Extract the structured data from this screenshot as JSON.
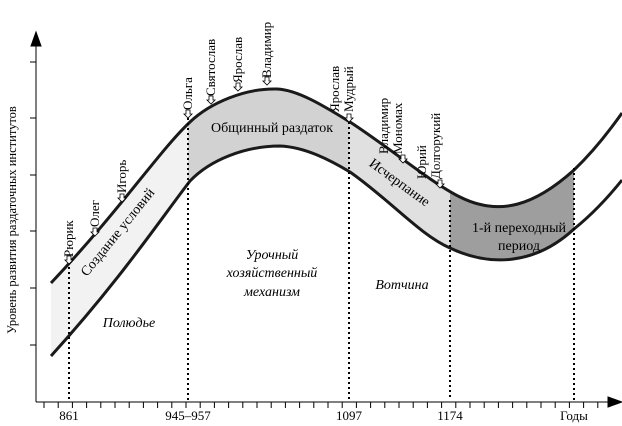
{
  "y_axis_label": "Уровень развития раздаточных институтов",
  "x_ticks": [
    "861",
    "945–957",
    "1097",
    "1174",
    "Годы"
  ],
  "stages": {
    "creation": "Создание условий",
    "common": "Общинный раздаток",
    "exhaustion": "Исчерпание",
    "transition_line1": "1-й переходный",
    "transition_line2": "период"
  },
  "lower_regions": {
    "polyudye": "Полюдье",
    "urochny_1": "Урочный",
    "urochny_2": "хозяйственный",
    "urochny_3": "механизм",
    "votchina": "Вотчина"
  },
  "rulers": [
    {
      "lines": [
        "Рюрик"
      ]
    },
    {
      "lines": [
        "Олег"
      ]
    },
    {
      "lines": [
        "Игорь"
      ]
    },
    {
      "lines": [
        "Ольга"
      ]
    },
    {
      "lines": [
        "Святослав"
      ]
    },
    {
      "lines": [
        "Ярослав"
      ]
    },
    {
      "lines": [
        "Владимир"
      ]
    },
    {
      "lines": [
        "Ярослав",
        "Мудрый"
      ]
    },
    {
      "lines": [
        "Владимир",
        "Мономах"
      ]
    },
    {
      "lines": [
        "Юрий",
        "Долгорукий"
      ]
    }
  ],
  "colors": {
    "band_light": "#f2f2f2",
    "band_mid": "#d2d2d2",
    "band_pale": "#e0e0e0",
    "band_dark": "#9e9e9e",
    "curve": "#1a1a1a"
  }
}
